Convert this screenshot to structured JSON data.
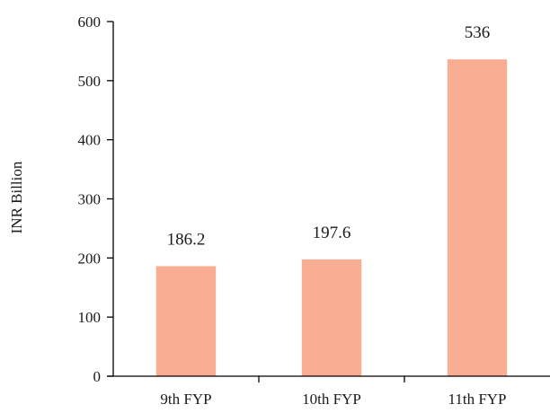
{
  "chart_data": {
    "type": "bar",
    "title": "",
    "xlabel": "",
    "ylabel": "INR Billion",
    "categories": [
      "9th FYP",
      "10th FYP",
      "11th FYP"
    ],
    "values": [
      186.2,
      197.6,
      536
    ],
    "value_labels": [
      "186.2",
      "197.6",
      "536"
    ],
    "ylim": [
      0,
      600
    ],
    "yticks": [
      0,
      100,
      200,
      300,
      400,
      500,
      600
    ],
    "ytick_labels": [
      "0",
      "100",
      "200",
      "300",
      "400",
      "500",
      "600"
    ],
    "grid": false,
    "legend": "none",
    "bar_color": "#f9ae94",
    "axis_color": "#000000"
  }
}
